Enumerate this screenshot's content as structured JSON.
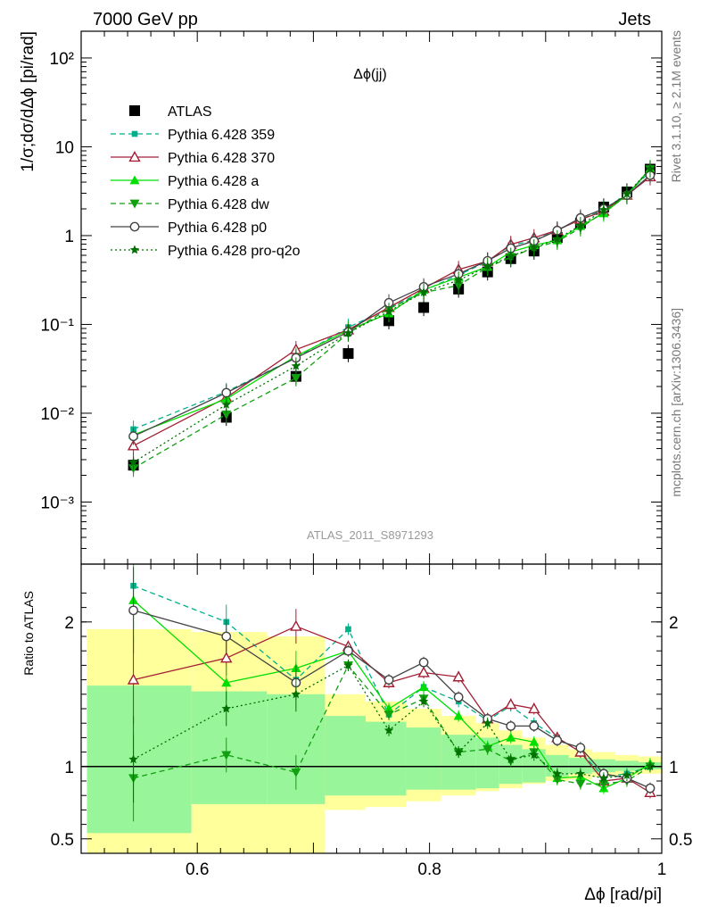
{
  "header": {
    "left": "7000 GeV pp",
    "right": "Jets"
  },
  "side": {
    "rivet": "Rivet 3.1.10, ≥ 2.1M events",
    "mcplots": "mcplots.cern.ch [arXiv:1306.3436]"
  },
  "chart_data": [
    {
      "type": "scatter",
      "panel": "main",
      "title": "Δϕ(jj)",
      "ylabel": "1/σ;dσ/dΔϕ [pi/rad]",
      "yscale": "log",
      "xlim": [
        0.5,
        1.0
      ],
      "ylim": [
        0.0002,
        200
      ],
      "y_ticks": [
        0.001,
        0.01,
        0.1,
        1,
        10,
        100
      ],
      "y_tick_labels": [
        "10⁻³",
        "10⁻²",
        "10⁻¹",
        "1",
        "10",
        "10²"
      ],
      "watermark": "ATLAS_2011_S8971293",
      "legend_position": "top-left",
      "x": [
        0.545,
        0.625,
        0.685,
        0.73,
        0.765,
        0.795,
        0.825,
        0.85,
        0.87,
        0.89,
        0.91,
        0.93,
        0.95,
        0.97,
        0.99
      ],
      "series": [
        {
          "name": "ATLAS",
          "color": "#000000",
          "marker": "square",
          "line": "none",
          "values": [
            0.0026,
            0.009,
            0.026,
            0.047,
            0.11,
            0.155,
            0.25,
            0.39,
            0.55,
            0.67,
            0.95,
            1.38,
            2.1,
            3.1,
            5.6
          ]
        },
        {
          "name": "Pythia 6.428 359",
          "color": "#00b08a",
          "marker": "small-square",
          "line": "dashed",
          "values": [
            0.0066,
            0.0175,
            0.042,
            0.093,
            0.15,
            0.24,
            0.36,
            0.51,
            0.78,
            0.88,
            1.16,
            1.52,
            1.95,
            2.95,
            5.25
          ]
        },
        {
          "name": "Pythia 6.428 370",
          "color": "#a31f34",
          "marker": "open-triangle",
          "line": "solid",
          "values": [
            0.0043,
            0.015,
            0.052,
            0.087,
            0.155,
            0.255,
            0.415,
            0.515,
            0.795,
            0.945,
            1.15,
            1.52,
            1.88,
            2.85,
            4.6
          ]
        },
        {
          "name": "Pythia 6.428 a",
          "color": "#00e000",
          "marker": "triangle",
          "line": "solid",
          "values": [
            0.0057,
            0.0145,
            0.044,
            0.086,
            0.133,
            0.245,
            0.34,
            0.445,
            0.655,
            0.78,
            0.885,
            1.28,
            1.78,
            2.85,
            5.7
          ]
        },
        {
          "name": "Pythia 6.428 dw",
          "color": "#10a010",
          "marker": "down-triangle",
          "line": "dashed",
          "values": [
            0.0024,
            0.0097,
            0.025,
            0.08,
            0.15,
            0.228,
            0.275,
            0.44,
            0.57,
            0.73,
            0.86,
            1.22,
            1.85,
            2.8,
            5.6
          ]
        },
        {
          "name": "Pythia 6.428 p0",
          "color": "#444444",
          "marker": "open-circle",
          "line": "solid",
          "values": [
            0.0055,
            0.017,
            0.042,
            0.082,
            0.175,
            0.265,
            0.37,
            0.52,
            0.72,
            0.87,
            1.14,
            1.58,
            2.0,
            2.85,
            4.8
          ]
        },
        {
          "name": "Pythia 6.428 pro-q2o",
          "color": "#007000",
          "marker": "star",
          "line": "dotted",
          "values": [
            0.0028,
            0.0125,
            0.034,
            0.08,
            0.14,
            0.23,
            0.315,
            0.45,
            0.585,
            0.73,
            0.92,
            1.3,
            1.95,
            2.95,
            5.6
          ]
        }
      ]
    },
    {
      "type": "scatter",
      "panel": "ratio",
      "xlabel": "Δϕ [rad/pi]",
      "ylabel": "Ratio to ATLAS",
      "xlim": [
        0.5,
        1.0
      ],
      "x_ticks": [
        0.6,
        0.8,
        1.0
      ],
      "x_tick_labels": [
        "0.6",
        "0.8",
        "1"
      ],
      "ylim": [
        0.4,
        2.4
      ],
      "y_ticks": [
        0.5,
        1,
        2
      ],
      "y_tick_labels": [
        "0.5",
        "1",
        "2"
      ],
      "x": [
        0.545,
        0.625,
        0.685,
        0.73,
        0.765,
        0.795,
        0.825,
        0.85,
        0.87,
        0.89,
        0.91,
        0.93,
        0.95,
        0.97,
        0.99
      ],
      "band_edges": [
        0.505,
        0.595,
        0.66,
        0.71,
        0.745,
        0.78,
        0.81,
        0.84,
        0.86,
        0.88,
        0.9,
        0.92,
        0.94,
        0.96,
        0.98,
        1.0
      ],
      "band_stat": {
        "lo": [
          0.54,
          0.74,
          0.74,
          0.8,
          0.8,
          0.84,
          0.84,
          0.85,
          0.88,
          0.89,
          0.93,
          0.95,
          0.96,
          0.97,
          0.98
        ],
        "hi": [
          1.56,
          1.52,
          1.5,
          1.35,
          1.31,
          1.27,
          1.22,
          1.2,
          1.15,
          1.12,
          1.08,
          1.06,
          1.05,
          1.04,
          1.03
        ]
      },
      "band_total": {
        "lo": [
          0.3,
          0.3,
          0.3,
          0.7,
          0.72,
          0.76,
          0.8,
          0.83,
          0.85,
          0.88,
          0.9,
          0.91,
          0.93,
          0.94,
          0.95
        ],
        "hi": [
          1.95,
          1.93,
          1.9,
          1.5,
          1.45,
          1.4,
          1.35,
          1.3,
          1.25,
          1.2,
          1.15,
          1.12,
          1.1,
          1.08,
          1.07
        ]
      },
      "series": [
        {
          "name": "Pythia 6.428 359",
          "color": "#00b08a",
          "marker": "small-square",
          "line": "dashed",
          "values": [
            2.25,
            2.0,
            1.6,
            1.95,
            1.36,
            1.55,
            1.45,
            1.32,
            1.42,
            1.3,
            1.2,
            1.1,
            0.93,
            0.95,
            1.0
          ]
        },
        {
          "name": "Pythia 6.428 370",
          "color": "#a31f34",
          "marker": "open-triangle",
          "line": "solid",
          "values": [
            1.6,
            1.75,
            1.97,
            1.83,
            1.58,
            1.65,
            1.62,
            1.33,
            1.43,
            1.4,
            1.2,
            1.1,
            0.9,
            0.92,
            0.82
          ]
        },
        {
          "name": "Pythia 6.428 a",
          "color": "#00e000",
          "marker": "triangle",
          "line": "solid",
          "values": [
            2.15,
            1.58,
            1.68,
            1.8,
            1.4,
            1.55,
            1.35,
            1.14,
            1.2,
            1.17,
            0.92,
            0.93,
            0.85,
            0.92,
            1.02
          ]
        },
        {
          "name": "Pythia 6.428 dw",
          "color": "#10a010",
          "marker": "down-triangle",
          "line": "dashed",
          "values": [
            0.92,
            1.08,
            0.96,
            1.7,
            1.36,
            1.47,
            1.1,
            1.12,
            1.04,
            1.1,
            0.91,
            0.88,
            0.88,
            0.9,
            1.0
          ]
        },
        {
          "name": "Pythia 6.428 p0",
          "color": "#444444",
          "marker": "open-circle",
          "line": "solid",
          "values": [
            2.08,
            1.9,
            1.58,
            1.8,
            1.6,
            1.72,
            1.48,
            1.33,
            1.28,
            1.28,
            1.18,
            1.13,
            0.95,
            0.92,
            0.85
          ]
        },
        {
          "name": "Pythia 6.428 pro-q2o",
          "color": "#007000",
          "marker": "star",
          "line": "dotted",
          "values": [
            1.05,
            1.4,
            1.5,
            1.7,
            1.25,
            1.45,
            1.1,
            1.3,
            1.05,
            1.08,
            0.95,
            0.95,
            0.92,
            0.94,
            1.0
          ]
        }
      ]
    }
  ]
}
